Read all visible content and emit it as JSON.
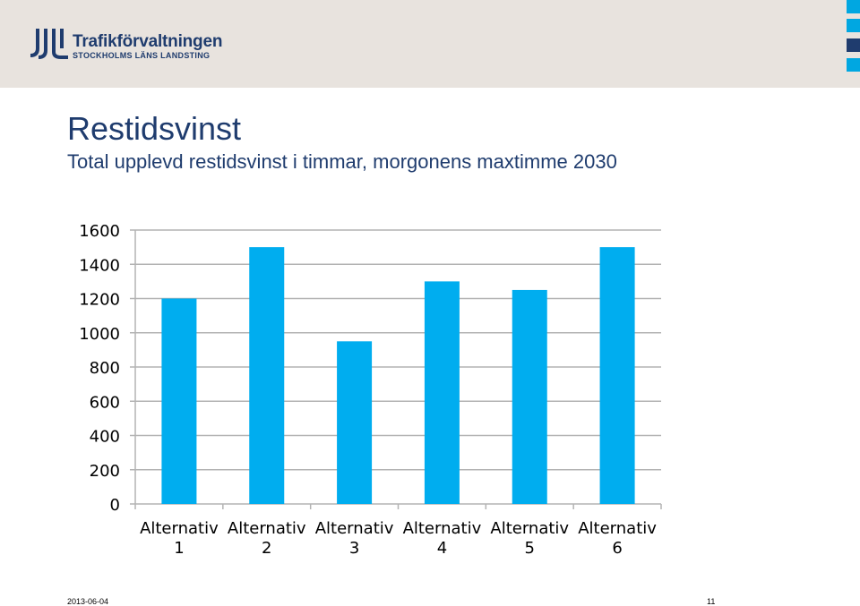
{
  "header": {
    "brand_name": "Trafikförvaltningen",
    "brand_sub": "STOCKHOLMS LÄNS LANDSTING",
    "logo_icon": "sll-logo-icon",
    "colors": {
      "band": "#e8e3de",
      "brand": "#1f3c6e",
      "square_light": "#00a7e1",
      "square_dark": "#1f3c6e"
    }
  },
  "slide": {
    "title": "Restidsvinst",
    "subtitle": "Total upplevd restidsvinst i timmar, morgonens maxtimme 2030"
  },
  "chart_data": {
    "type": "bar",
    "categories": [
      [
        "Alternativ",
        "1"
      ],
      [
        "Alternativ",
        "2"
      ],
      [
        "Alternativ",
        "3"
      ],
      [
        "Alternativ",
        "4"
      ],
      [
        "Alternativ",
        "5"
      ],
      [
        "Alternativ",
        "6"
      ]
    ],
    "values": [
      1200,
      1500,
      950,
      1300,
      1250,
      1500
    ],
    "yticks": [
      "0",
      "200",
      "400",
      "600",
      "800",
      "1000",
      "1200",
      "1400",
      "1600"
    ],
    "ylim": [
      0,
      1600
    ],
    "grid": true,
    "legend": "none",
    "bar_color": "#00adef",
    "grid_color": "#b3b3b3"
  },
  "footer": {
    "date": "2013-06-04",
    "page": "11"
  }
}
